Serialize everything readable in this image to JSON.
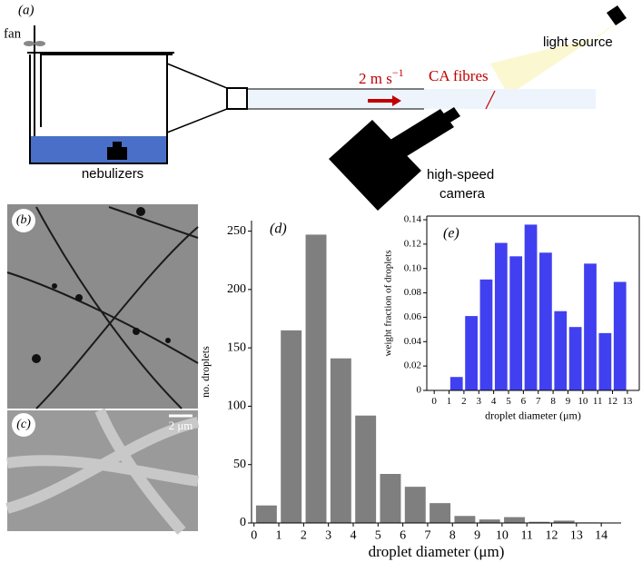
{
  "diagram": {
    "panel": "(a)",
    "fan": "fan",
    "nebulizers": "nebulizers",
    "speed": {
      "text": "2 m s",
      "sup": "−1"
    },
    "fibres": "CA fibres",
    "light": "light source",
    "camera": [
      "high-speed",
      "camera"
    ]
  },
  "photos": {
    "b": "(b)",
    "c": "(c)",
    "scale": "2 μm"
  },
  "chart_data": [
    {
      "type": "histogram",
      "panel": "(d)",
      "xlabel": "droplet diameter (μm)",
      "ylabel": "no. droplets",
      "color": "#7f7f7f",
      "bins": [
        0,
        1,
        2,
        3,
        4,
        5,
        6,
        7,
        8,
        9,
        10,
        11,
        12,
        13,
        14
      ],
      "values": [
        15,
        165,
        247,
        141,
        92,
        42,
        31,
        17,
        6,
        3,
        5,
        1,
        2,
        0.5
      ],
      "xlim": [
        -0.1,
        14.8
      ],
      "xticks": [
        0,
        1,
        2,
        3,
        4,
        5,
        6,
        7,
        8,
        9,
        10,
        11,
        12,
        13,
        14
      ],
      "ylim": [
        0,
        259
      ],
      "yticks": [
        0,
        50,
        100,
        150,
        200,
        250
      ]
    },
    {
      "type": "histogram",
      "panel": "(e)",
      "xlabel": "droplet diameter (μm)",
      "ylabel": "weight fraction of droplets",
      "color": "#4040f0",
      "bins": [
        0,
        1,
        2,
        3,
        4,
        5,
        6,
        7,
        8,
        9,
        10,
        11,
        12,
        13
      ],
      "values": [
        0,
        0.011,
        0.061,
        0.091,
        0.121,
        0.11,
        0.136,
        0.113,
        0.065,
        0.052,
        0.104,
        0.047,
        0.089
      ],
      "xlim": [
        -0.5,
        13.8
      ],
      "xticks": [
        0,
        1,
        2,
        3,
        4,
        5,
        6,
        7,
        8,
        9,
        10,
        11,
        12,
        13
      ],
      "ylim": [
        0,
        0.143
      ],
      "yticks": [
        0,
        0.02,
        0.04,
        0.06,
        0.08,
        {
          "value": 0.1,
          "label": "0.10"
        },
        0.12,
        0.14
      ]
    }
  ]
}
